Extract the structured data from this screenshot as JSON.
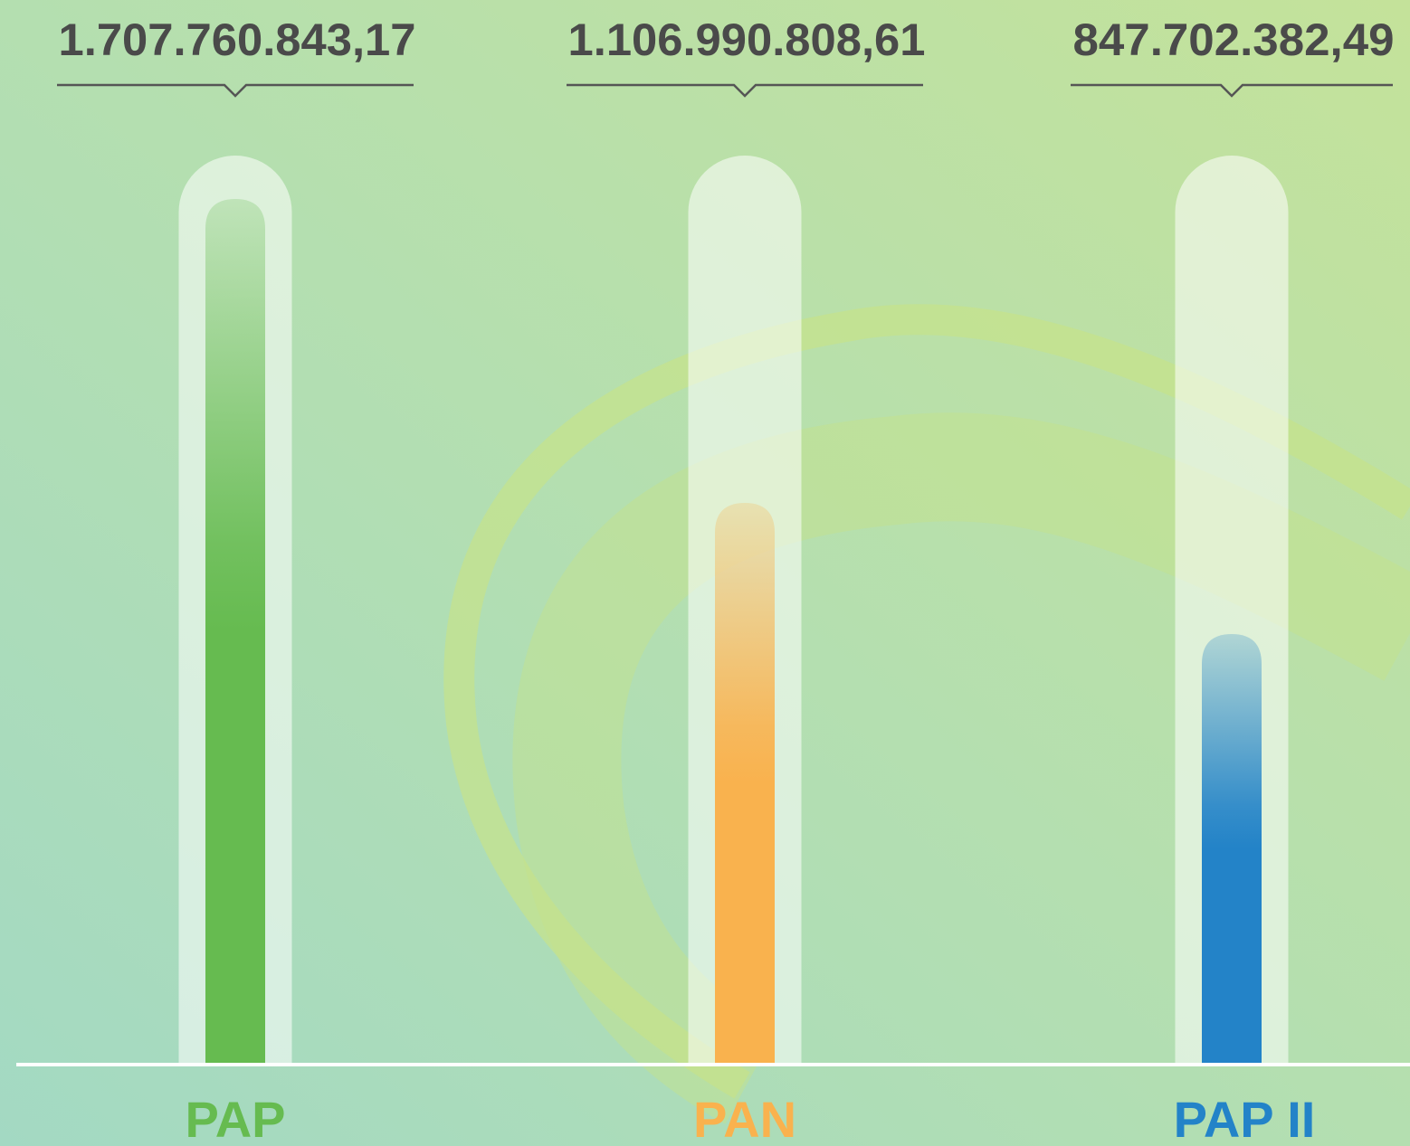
{
  "chart_data": {
    "type": "bar",
    "categories": [
      "PAP",
      "PAN",
      "PAP II"
    ],
    "values": [
      1707760843.17,
      1106990808.61,
      847702382.49
    ],
    "value_labels": [
      "1.707.760.843,17",
      "1.106.990.808,61",
      "847.702.382,49"
    ],
    "colors": [
      "#66bb50",
      "#f9b24e",
      "#2383c8"
    ]
  }
}
